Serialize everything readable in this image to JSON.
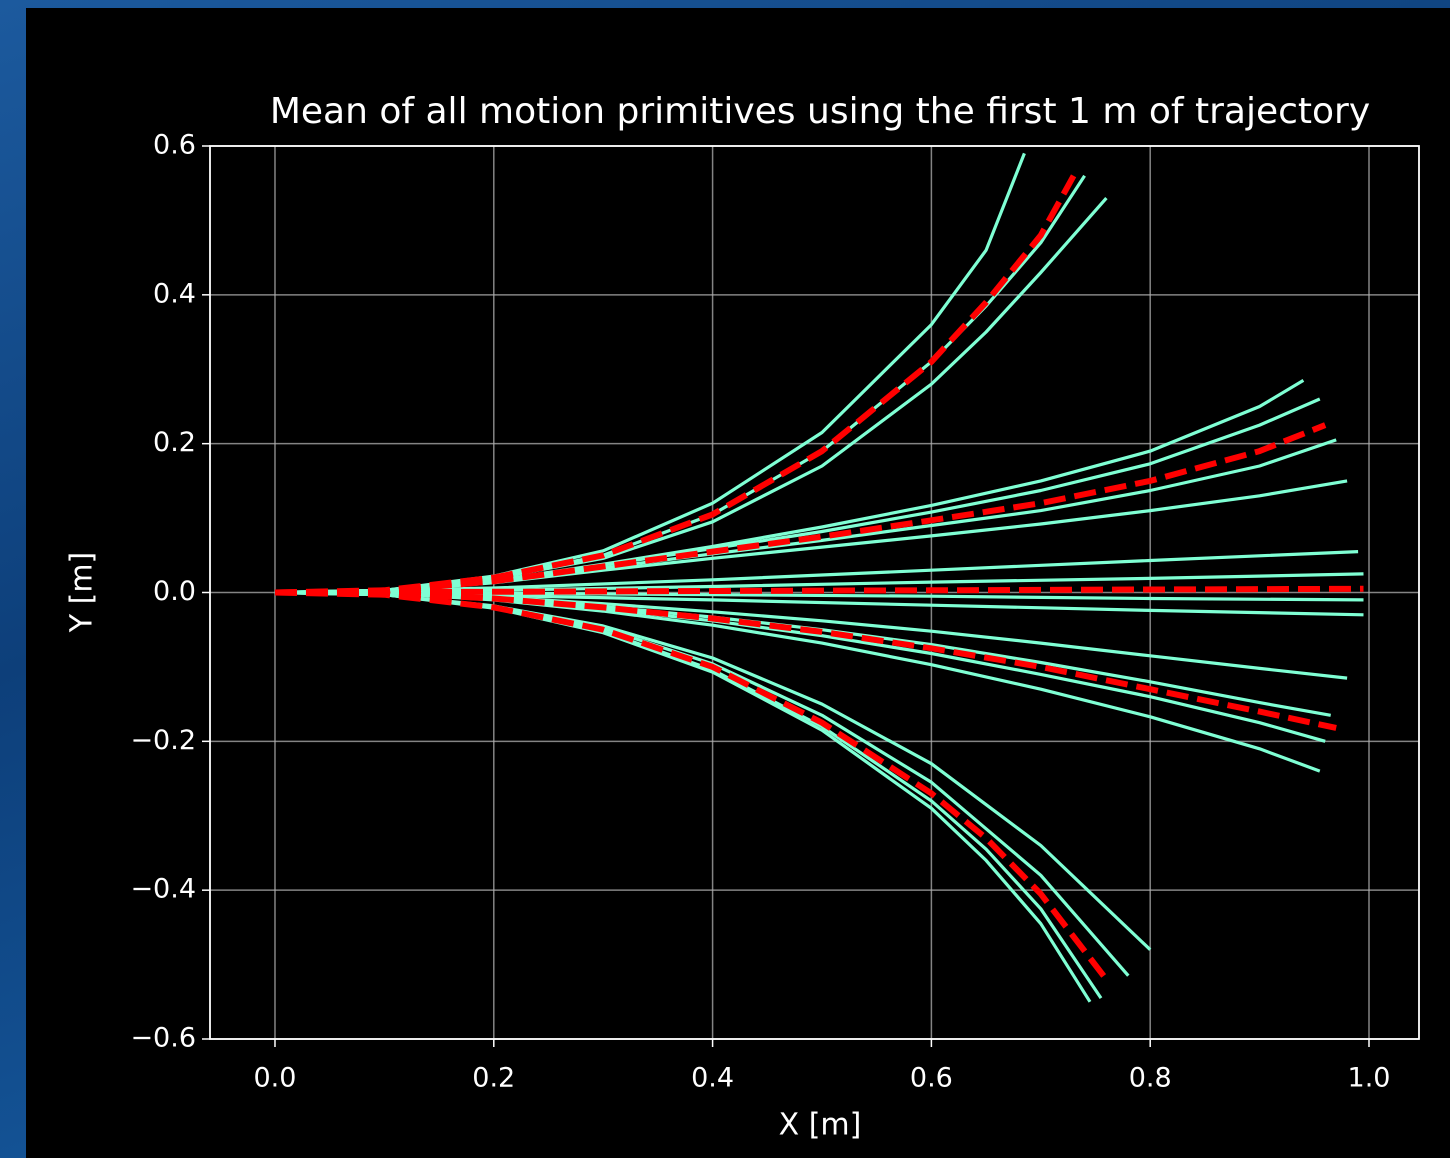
{
  "chart_data": {
    "type": "line",
    "title": "Mean of all motion primitives using the first 1 m of trajectory",
    "xlabel": "X [m]",
    "ylabel": "Y [m]",
    "xlim": [
      -0.0594,
      1.0457
    ],
    "ylim": [
      -0.6,
      0.6
    ],
    "xticks": [
      {
        "value": 0,
        "label": "0.0"
      },
      {
        "value": 0.2,
        "label": "0.2"
      },
      {
        "value": 0.4,
        "label": "0.4"
      },
      {
        "value": 0.6,
        "label": "0.6"
      },
      {
        "value": 0.8,
        "label": "0.8"
      },
      {
        "value": 1.0,
        "label": "1.0"
      }
    ],
    "yticks": [
      {
        "value": -0.6,
        "label": "−0.6"
      },
      {
        "value": -0.4,
        "label": "−0.4"
      },
      {
        "value": -0.2,
        "label": "−0.2"
      },
      {
        "value": 0,
        "label": "0.0"
      },
      {
        "value": 0.2,
        "label": "0.2"
      },
      {
        "value": 0.4,
        "label": "0.4"
      },
      {
        "value": 0.6,
        "label": "0.6"
      }
    ],
    "grid": true,
    "series": [
      {
        "color": "#7fffd4",
        "linestyle": "solid",
        "x": [
          0,
          0.1,
          0.2,
          0.3,
          0.4,
          0.5,
          0.6,
          0.65,
          0.685
        ],
        "values": [
          0,
          0.003,
          0.022,
          0.056,
          0.12,
          0.215,
          0.36,
          0.46,
          0.59
        ]
      },
      {
        "color": "#7fffd4",
        "linestyle": "solid",
        "x": [
          0,
          0.1,
          0.2,
          0.3,
          0.4,
          0.5,
          0.6,
          0.65,
          0.7,
          0.74
        ],
        "values": [
          0,
          0.003,
          0.02,
          0.05,
          0.105,
          0.19,
          0.31,
          0.385,
          0.47,
          0.56
        ]
      },
      {
        "color": "#7fffd4",
        "linestyle": "solid",
        "x": [
          0,
          0.1,
          0.2,
          0.3,
          0.4,
          0.5,
          0.6,
          0.65,
          0.7,
          0.76
        ],
        "values": [
          0,
          0.003,
          0.019,
          0.046,
          0.095,
          0.17,
          0.28,
          0.35,
          0.43,
          0.53
        ]
      },
      {
        "color": "#7fffd4",
        "linestyle": "solid",
        "x": [
          0,
          0.1,
          0.2,
          0.3,
          0.4,
          0.5,
          0.6,
          0.7,
          0.8,
          0.9,
          0.94
        ],
        "values": [
          0,
          0.002,
          0.016,
          0.038,
          0.062,
          0.088,
          0.117,
          0.15,
          0.19,
          0.25,
          0.285
        ]
      },
      {
        "color": "#7fffd4",
        "linestyle": "solid",
        "x": [
          0,
          0.1,
          0.2,
          0.3,
          0.4,
          0.5,
          0.6,
          0.7,
          0.8,
          0.9,
          0.955
        ],
        "values": [
          0,
          0.002,
          0.016,
          0.037,
          0.059,
          0.082,
          0.108,
          0.137,
          0.173,
          0.225,
          0.26
        ]
      },
      {
        "color": "#7fffd4",
        "linestyle": "solid",
        "x": [
          0,
          0.1,
          0.2,
          0.3,
          0.4,
          0.5,
          0.6,
          0.7,
          0.8,
          0.9,
          0.97
        ],
        "values": [
          0,
          0.002,
          0.014,
          0.033,
          0.052,
          0.07,
          0.09,
          0.11,
          0.137,
          0.17,
          0.205
        ]
      },
      {
        "color": "#7fffd4",
        "linestyle": "solid",
        "x": [
          0,
          0.1,
          0.2,
          0.3,
          0.4,
          0.5,
          0.6,
          0.7,
          0.8,
          0.9,
          0.98
        ],
        "values": [
          0,
          0.002,
          0.013,
          0.03,
          0.046,
          0.061,
          0.076,
          0.092,
          0.11,
          0.13,
          0.15
        ]
      },
      {
        "color": "#7fffd4",
        "linestyle": "solid",
        "x": [
          0,
          0.2,
          0.4,
          0.6,
          0.8,
          0.99
        ],
        "values": [
          0,
          0.006,
          0.017,
          0.03,
          0.043,
          0.055
        ]
      },
      {
        "color": "#7fffd4",
        "linestyle": "solid",
        "x": [
          0,
          0.2,
          0.4,
          0.6,
          0.8,
          0.995
        ],
        "values": [
          0,
          0.003,
          0.008,
          0.014,
          0.019,
          0.025
        ]
      },
      {
        "color": "#7fffd4",
        "linestyle": "solid",
        "x": [
          0,
          0.2,
          0.4,
          0.6,
          0.8,
          0.995
        ],
        "values": [
          0,
          -0.001,
          -0.003,
          -0.005,
          -0.008,
          -0.01
        ]
      },
      {
        "color": "#7fffd4",
        "linestyle": "solid",
        "x": [
          0,
          0.2,
          0.4,
          0.6,
          0.8,
          0.995
        ],
        "values": [
          0,
          -0.004,
          -0.01,
          -0.017,
          -0.024,
          -0.03
        ]
      },
      {
        "color": "#7fffd4",
        "linestyle": "solid",
        "x": [
          0,
          0.1,
          0.2,
          0.3,
          0.4,
          0.5,
          0.6,
          0.7,
          0.8,
          0.9,
          0.98
        ],
        "values": [
          0,
          -0.001,
          -0.006,
          -0.015,
          -0.026,
          -0.038,
          -0.052,
          -0.068,
          -0.085,
          -0.102,
          -0.115
        ]
      },
      {
        "color": "#7fffd4",
        "linestyle": "solid",
        "x": [
          0,
          0.1,
          0.2,
          0.3,
          0.4,
          0.5,
          0.6,
          0.7,
          0.8,
          0.9,
          0.965
        ],
        "values": [
          0,
          -0.001,
          -0.008,
          -0.019,
          -0.033,
          -0.05,
          -0.07,
          -0.094,
          -0.12,
          -0.148,
          -0.165
        ]
      },
      {
        "color": "#7fffd4",
        "linestyle": "solid",
        "x": [
          0,
          0.1,
          0.2,
          0.3,
          0.4,
          0.5,
          0.6,
          0.7,
          0.8,
          0.9,
          0.96
        ],
        "values": [
          0,
          -0.001,
          -0.009,
          -0.022,
          -0.038,
          -0.058,
          -0.082,
          -0.11,
          -0.14,
          -0.175,
          -0.2
        ]
      },
      {
        "color": "#7fffd4",
        "linestyle": "solid",
        "x": [
          0,
          0.1,
          0.2,
          0.3,
          0.4,
          0.5,
          0.6,
          0.7,
          0.8,
          0.9,
          0.955
        ],
        "values": [
          0,
          -0.001,
          -0.01,
          -0.025,
          -0.044,
          -0.068,
          -0.097,
          -0.13,
          -0.167,
          -0.21,
          -0.24
        ]
      },
      {
        "color": "#7fffd4",
        "linestyle": "solid",
        "x": [
          0,
          0.1,
          0.2,
          0.3,
          0.4,
          0.5,
          0.6,
          0.7,
          0.8
        ],
        "values": [
          0,
          -0.003,
          -0.018,
          -0.045,
          -0.088,
          -0.15,
          -0.23,
          -0.34,
          -0.48
        ]
      },
      {
        "color": "#7fffd4",
        "linestyle": "solid",
        "x": [
          0,
          0.1,
          0.2,
          0.3,
          0.4,
          0.5,
          0.6,
          0.7,
          0.78
        ],
        "values": [
          0,
          -0.003,
          -0.019,
          -0.048,
          -0.096,
          -0.165,
          -0.255,
          -0.38,
          -0.515
        ]
      },
      {
        "color": "#7fffd4",
        "linestyle": "solid",
        "x": [
          0,
          0.1,
          0.2,
          0.3,
          0.4,
          0.5,
          0.6,
          0.65,
          0.7,
          0.745
        ],
        "values": [
          0,
          -0.003,
          -0.021,
          -0.054,
          -0.107,
          -0.185,
          -0.29,
          -0.36,
          -0.445,
          -0.55
        ]
      },
      {
        "color": "#7fffd4",
        "linestyle": "solid",
        "x": [
          0,
          0.1,
          0.2,
          0.3,
          0.4,
          0.5,
          0.6,
          0.65,
          0.7,
          0.755
        ],
        "values": [
          0,
          -0.003,
          -0.02,
          -0.052,
          -0.104,
          -0.18,
          -0.28,
          -0.345,
          -0.425,
          -0.545
        ]
      },
      {
        "color": "#ff0000",
        "linestyle": "dashed",
        "x": [
          0,
          0.1,
          0.2,
          0.3,
          0.4,
          0.5,
          0.6,
          0.65,
          0.7,
          0.73
        ],
        "values": [
          0,
          0.003,
          0.02,
          0.05,
          0.105,
          0.19,
          0.31,
          0.39,
          0.48,
          0.56
        ]
      },
      {
        "color": "#ff0000",
        "linestyle": "dashed",
        "x": [
          0,
          0.1,
          0.2,
          0.3,
          0.4,
          0.5,
          0.6,
          0.7,
          0.8,
          0.9,
          0.96
        ],
        "values": [
          0,
          0.002,
          0.015,
          0.035,
          0.055,
          0.075,
          0.097,
          0.12,
          0.15,
          0.19,
          0.225
        ]
      },
      {
        "color": "#ff0000",
        "linestyle": "dashed",
        "x": [
          0,
          0.2,
          0.4,
          0.6,
          0.8,
          0.995
        ],
        "values": [
          0,
          0.001,
          0.002,
          0.003,
          0.004,
          0.005
        ]
      },
      {
        "color": "#ff0000",
        "linestyle": "dashed",
        "x": [
          0,
          0.1,
          0.2,
          0.3,
          0.4,
          0.5,
          0.6,
          0.7,
          0.8,
          0.9,
          0.97
        ],
        "values": [
          0,
          -0.001,
          -0.008,
          -0.02,
          -0.035,
          -0.053,
          -0.075,
          -0.1,
          -0.13,
          -0.16,
          -0.182
        ]
      },
      {
        "color": "#ff0000",
        "linestyle": "dashed",
        "x": [
          0,
          0.1,
          0.2,
          0.3,
          0.4,
          0.5,
          0.6,
          0.65,
          0.7,
          0.76
        ],
        "values": [
          0,
          -0.003,
          -0.02,
          -0.05,
          -0.1,
          -0.175,
          -0.27,
          -0.33,
          -0.405,
          -0.52
        ]
      }
    ]
  }
}
